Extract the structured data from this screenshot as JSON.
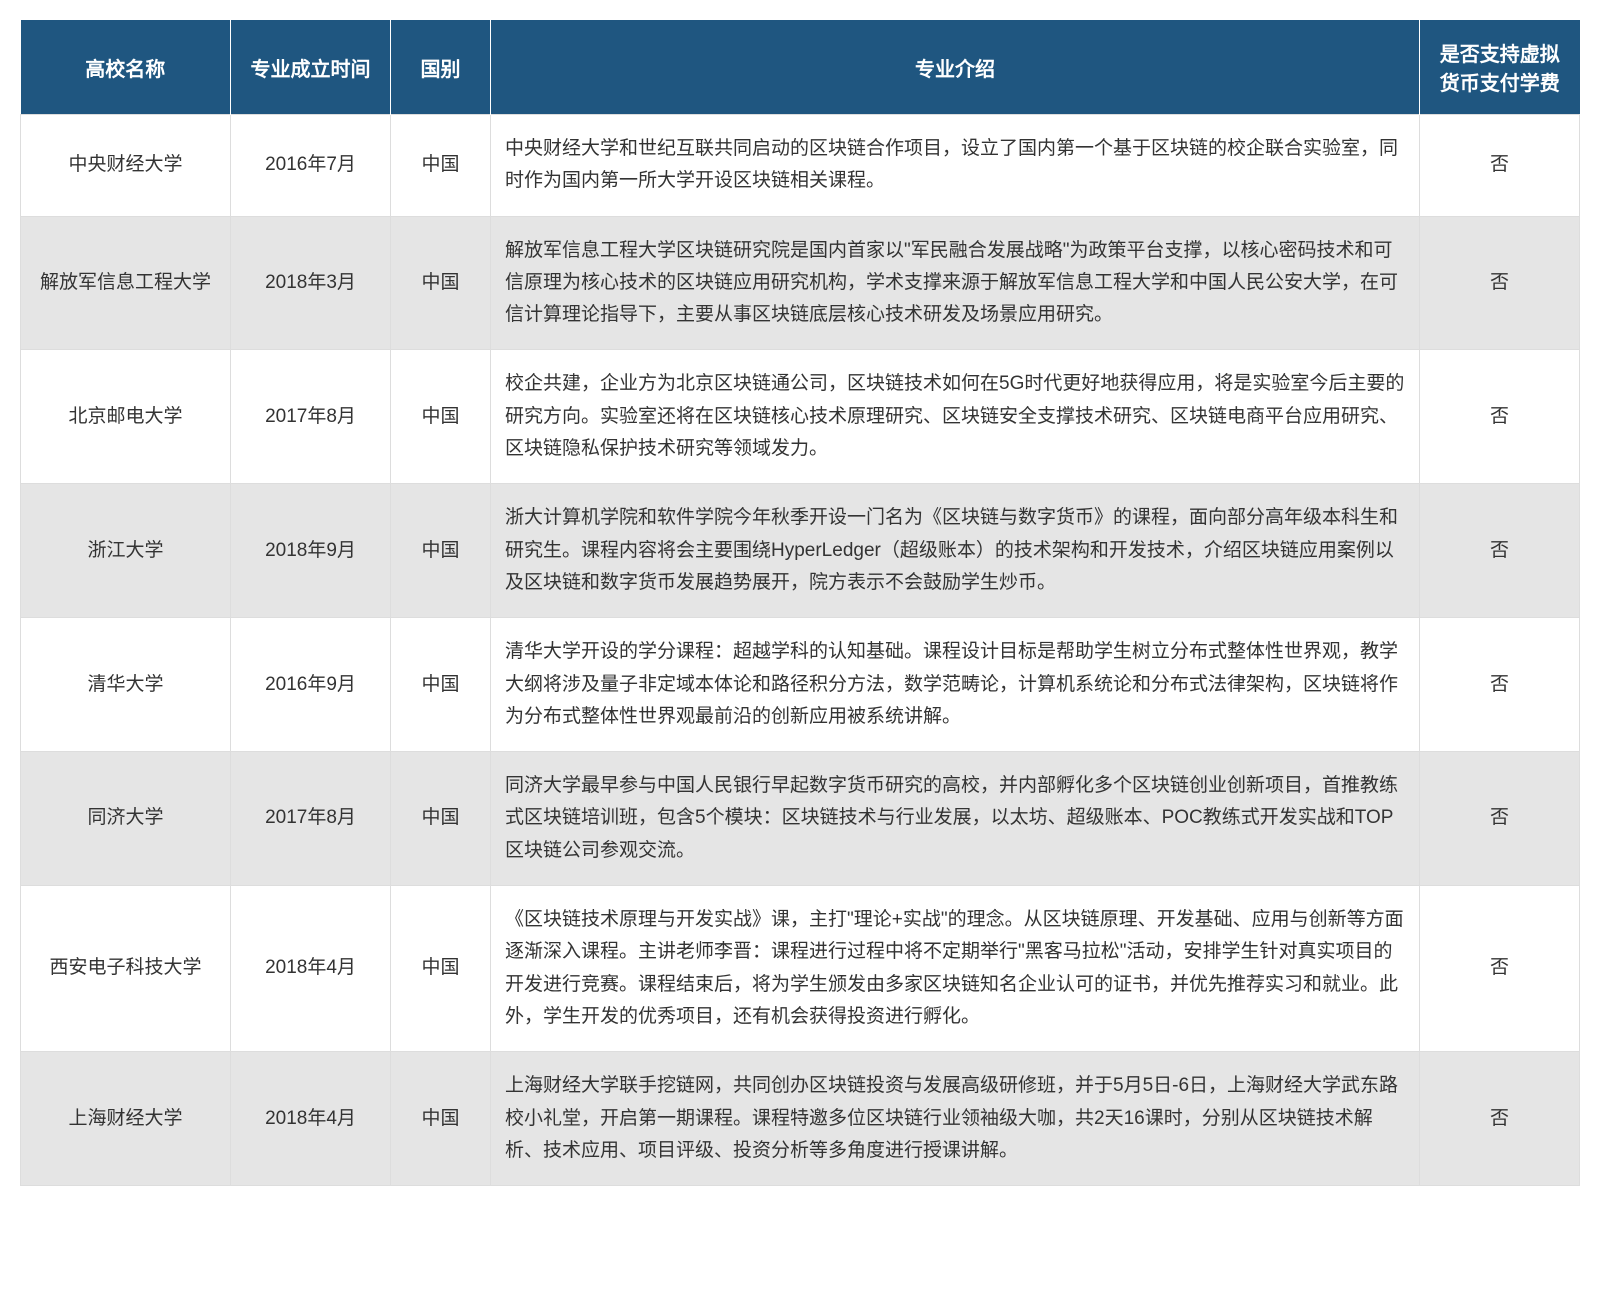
{
  "table": {
    "headers": {
      "name": "高校名称",
      "date": "专业成立时间",
      "country": "国别",
      "desc": "专业介绍",
      "crypto": "是否支持虚拟货币支付学费"
    },
    "rows": [
      {
        "name": "中央财经大学",
        "date": "2016年7月",
        "country": "中国",
        "desc": "中央财经大学和世纪互联共同启动的区块链合作项目，设立了国内第一个基于区块链的校企联合实验室，同时作为国内第一所大学开设区块链相关课程。",
        "crypto": "否"
      },
      {
        "name": "解放军信息工程大学",
        "date": "2018年3月",
        "country": "中国",
        "desc": "解放军信息工程大学区块链研究院是国内首家以\"军民融合发展战略\"为政策平台支撑，以核心密码技术和可信原理为核心技术的区块链应用研究机构，学术支撑来源于解放军信息工程大学和中国人民公安大学，在可信计算理论指导下，主要从事区块链底层核心技术研发及场景应用研究。",
        "crypto": "否"
      },
      {
        "name": "北京邮电大学",
        "date": "2017年8月",
        "country": "中国",
        "desc": "校企共建，企业方为北京区块链通公司，区块链技术如何在5G时代更好地获得应用，将是实验室今后主要的研究方向。实验室还将在区块链核心技术原理研究、区块链安全支撑技术研究、区块链电商平台应用研究、区块链隐私保护技术研究等领域发力。",
        "crypto": "否"
      },
      {
        "name": "浙江大学",
        "date": "2018年9月",
        "country": "中国",
        "desc": "浙大计算机学院和软件学院今年秋季开设一门名为《区块链与数字货币》的课程，面向部分高年级本科生和研究生。课程内容将会主要围绕HyperLedger（超级账本）的技术架构和开发技术，介绍区块链应用案例以及区块链和数字货币发展趋势展开，院方表示不会鼓励学生炒币。",
        "crypto": "否"
      },
      {
        "name": "清华大学",
        "date": "2016年9月",
        "country": "中国",
        "desc": "清华大学开设的学分课程：超越学科的认知基础。课程设计目标是帮助学生树立分布式整体性世界观，教学大纲将涉及量子非定域本体论和路径积分方法，数学范畴论，计算机系统论和分布式法律架构，区块链将作为分布式整体性世界观最前沿的创新应用被系统讲解。",
        "crypto": "否"
      },
      {
        "name": "同济大学",
        "date": "2017年8月",
        "country": "中国",
        "desc": "同济大学最早参与中国人民银行早起数字货币研究的高校，并内部孵化多个区块链创业创新项目，首推教练式区块链培训班，包含5个模块：区块链技术与行业发展，以太坊、超级账本、POC教练式开发实战和TOP区块链公司参观交流。",
        "crypto": "否"
      },
      {
        "name": "西安电子科技大学",
        "date": "2018年4月",
        "country": "中国",
        "desc": "《区块链技术原理与开发实战》课，主打\"理论+实战\"的理念。从区块链原理、开发基础、应用与创新等方面逐渐深入课程。主讲老师李晋：课程进行过程中将不定期举行\"黑客马拉松\"活动，安排学生针对真实项目的开发进行竞赛。课程结束后，将为学生颁发由多家区块链知名企业认可的证书，并优先推荐实习和就业。此外，学生开发的优秀项目，还有机会获得投资进行孵化。",
        "crypto": "否"
      },
      {
        "name": "上海财经大学",
        "date": "2018年4月",
        "country": "中国",
        "desc": "上海财经大学联手挖链网，共同创办区块链投资与发展高级研修班，并于5月5日-6日，上海财经大学武东路校小礼堂，开启第一期课程。课程特邀多位区块链行业领袖级大咖，共2天16课时，分别从区块链技术解析、技术应用、项目评级、投资分析等多角度进行授课讲解。",
        "crypto": "否"
      }
    ],
    "styling": {
      "header_bg": "#1f5680",
      "header_text_color": "#ffffff",
      "row_even_bg": "#ffffff",
      "row_odd_bg": "#e5e5e5",
      "border_color": "#dddddd",
      "text_color": "#333333",
      "font_size_header": 20,
      "font_size_body": 19,
      "column_widths": {
        "name": 210,
        "date": 160,
        "country": 100,
        "crypto": 160
      }
    }
  }
}
